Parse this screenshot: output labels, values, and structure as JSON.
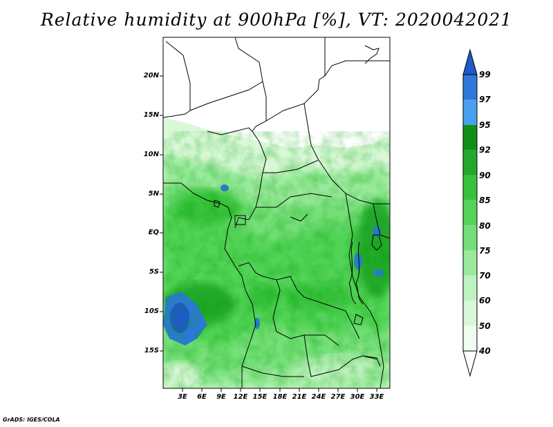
{
  "title": "Relative humidity at 900hPa [%], VT: 2020042021",
  "credit": "GrADS: IGES/COLA",
  "map": {
    "lat_labels": [
      "20N",
      "15N",
      "10N",
      "5N",
      "EQ",
      "5S",
      "10S",
      "15S"
    ],
    "lon_labels": [
      "3E",
      "6E",
      "9E",
      "12E",
      "15E",
      "18E",
      "21E",
      "24E",
      "27E",
      "30E",
      "33E"
    ]
  },
  "colorbar": {
    "levels": [
      "99",
      "97",
      "95",
      "92",
      "90",
      "85",
      "80",
      "75",
      "70",
      "60",
      "50",
      "40"
    ],
    "colors": [
      "#1e5ac8",
      "#2d78d8",
      "#4ba0ee",
      "#0f8f19",
      "#23a82b",
      "#37c23e",
      "#53d459",
      "#74df78",
      "#99ea9b",
      "#bff2bf",
      "#d9f8d8",
      "#f0fcef",
      "#ffffff"
    ]
  }
}
